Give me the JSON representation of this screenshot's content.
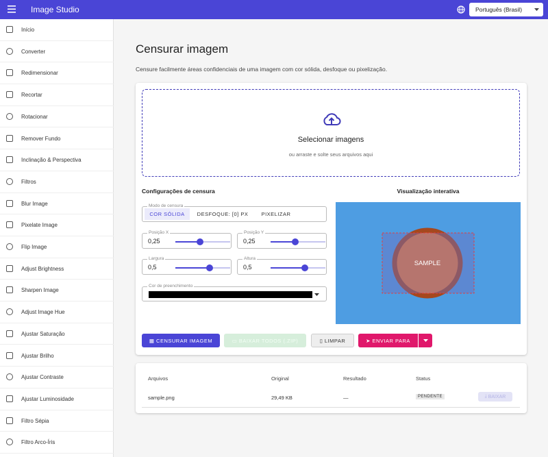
{
  "app_bar": {
    "title": "Image Studio",
    "language": "Português (Brasil)"
  },
  "sidebar": {
    "items": [
      "Início",
      "Converter",
      "Redimensionar",
      "Recortar",
      "Rotacionar",
      "Remover Fundo",
      "Inclinação & Perspectiva",
      "Filtros",
      "Blur Image",
      "Pixelate Image",
      "Flip Image",
      "Adjust Brightness",
      "Sharpen Image",
      "Adjust Image Hue",
      "Ajustar Saturação",
      "Ajustar Brilho",
      "Ajustar Contraste",
      "Ajustar Luminosidade",
      "Filtro Sépia",
      "Filtro Arco-Íris"
    ]
  },
  "page": {
    "title": "Censurar imagem",
    "description": "Censure facilmente áreas confidenciais de uma imagem com cor sólida, desfoque ou pixelização."
  },
  "dropzone": {
    "title": "Selecionar imagens",
    "subtitle": "ou arraste e solte seus arquivos aqui"
  },
  "settings": {
    "heading": "Configurações de censura",
    "mode_label": "Modo de censura",
    "modes": [
      "COR SÓLIDA",
      "DESFOQUE: [0] PX",
      "PIXELIZAR"
    ],
    "fields": [
      {
        "label": "Posição X",
        "value": "0,25"
      },
      {
        "label": "Posição Y",
        "value": "0,25"
      },
      {
        "label": "Largura",
        "value": "0,5"
      },
      {
        "label": "Altura",
        "value": "0,5"
      }
    ],
    "color_label": "Cor de preenchimento"
  },
  "preview": {
    "heading": "Visualização interativa",
    "sample": "SAMPLE"
  },
  "actions": [
    "CENSURAR IMAGEM",
    "BAIXAR TODOS (.ZIP)",
    "LIMPAR",
    "ENVIAR PARA"
  ],
  "table": {
    "headers": [
      "Arquivos",
      "Original",
      "Resultado",
      "Status"
    ],
    "rows": [
      [
        "sample.png",
        "29,49 KB",
        "—",
        "PENDENTE"
      ]
    ],
    "download": "BAIXAR"
  }
}
